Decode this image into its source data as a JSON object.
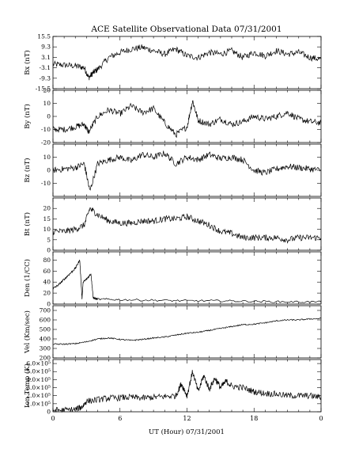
{
  "chart_data": {
    "type": "line",
    "title": "ACE Satellite Observational Data   07/31/2001",
    "xlabel": "UT (Hour)   07/31/2001",
    "x_tick_labels": [
      "0",
      "6",
      "12",
      "18",
      "0"
    ],
    "xlim": [
      0,
      24
    ],
    "grid": false,
    "panels": [
      {
        "ylabel": "Bx (nT)",
        "ylim": [
          -15.5,
          15.5
        ],
        "y_tick_labels": [
          "15.5",
          "9.3",
          "3.1",
          "-3.1",
          "-9.3",
          "-15.5"
        ],
        "series": [
          {
            "x": [
              0,
              1,
              2,
              2.8,
              3.2,
              3.6,
              4,
              5,
              6,
              7,
              8,
              9,
              10,
              11,
              12,
              13,
              14,
              15,
              16,
              17,
              18,
              19,
              20,
              21,
              22,
              23,
              24
            ],
            "values": [
              -1,
              -1.5,
              -2,
              -3,
              -9,
              -6,
              -4,
              3,
              6,
              8,
              9,
              7,
              5,
              8,
              4,
              3,
              6,
              5,
              7,
              3,
              6,
              4,
              7,
              5,
              6,
              3,
              2
            ]
          }
        ]
      },
      {
        "ylabel": "By (nT)",
        "ylim": [
          -20,
          20
        ],
        "y_tick_labels": [
          "20",
          "10",
          "0",
          "-10",
          "-20"
        ],
        "series": [
          {
            "x": [
              0,
              1,
              2,
              2.8,
              3.2,
              4,
              5,
              6,
              7,
              8,
              9,
              10,
              11,
              12,
              12.5,
              13,
              14,
              15,
              16,
              17,
              18,
              19,
              20,
              21,
              22,
              23,
              24
            ],
            "values": [
              -10,
              -10,
              -8,
              -6,
              -12,
              0,
              5,
              2,
              8,
              3,
              6,
              -5,
              -14,
              -8,
              12,
              -3,
              -6,
              -2,
              -6,
              -4,
              0,
              -2,
              0,
              3,
              -2,
              -4,
              -5
            ]
          }
        ]
      },
      {
        "ylabel": "Bz (nT)",
        "ylim": [
          -20,
          20
        ],
        "y_tick_labels": [
          "10",
          "0",
          "-10"
        ],
        "series": [
          {
            "x": [
              0,
              1,
              2,
              2.8,
              3.3,
              4,
              5,
              6,
              7,
              8,
              9,
              10,
              11,
              12,
              13,
              14,
              15,
              16,
              17,
              18,
              19,
              20,
              21,
              22,
              23,
              24
            ],
            "values": [
              0,
              1,
              2,
              5,
              -16,
              5,
              8,
              10,
              7,
              12,
              10,
              13,
              5,
              10,
              8,
              12,
              9,
              10,
              8,
              0,
              -2,
              1,
              3,
              2,
              1,
              0
            ]
          }
        ]
      },
      {
        "ylabel": "Bt (nT)",
        "ylim": [
          0,
          25
        ],
        "y_tick_labels": [
          "20",
          "15",
          "10",
          "5",
          "0"
        ],
        "series": [
          {
            "x": [
              0,
              1,
              2,
              2.8,
              3.3,
              4,
              5,
              6,
              7,
              8,
              9,
              10,
              11,
              12,
              13,
              14,
              15,
              16,
              17,
              18,
              19,
              20,
              21,
              22,
              23,
              24
            ],
            "values": [
              9,
              9,
              10,
              12,
              20,
              17,
              14,
              13,
              13,
              14,
              14,
              15,
              15,
              16,
              14,
              12,
              9,
              8,
              6,
              6,
              6,
              6,
              5,
              6,
              6,
              6
            ]
          }
        ]
      },
      {
        "ylabel": "Den (1/CC)",
        "ylim": [
          0,
          95
        ],
        "y_tick_labels": [
          "80",
          "60",
          "40",
          "20",
          "0"
        ],
        "series": [
          {
            "x": [
              0,
              0.5,
              1,
              1.5,
              2,
              2.4,
              2.6,
              2.7,
              3,
              3.4,
              3.6,
              3.8,
              4,
              6,
              9,
              12,
              15,
              18,
              21,
              24
            ],
            "values": [
              28,
              35,
              45,
              55,
              65,
              80,
              10,
              40,
              45,
              55,
              12,
              10,
              9,
              8,
              7,
              6,
              6,
              5,
              4,
              4
            ]
          }
        ]
      },
      {
        "ylabel": "Vel (Km/sec)",
        "ylim": [
          200,
          750
        ],
        "y_tick_labels": [
          "700",
          "600",
          "500",
          "400",
          "300",
          "200"
        ],
        "series": [
          {
            "x": [
              0,
              1,
              2,
              3,
              4,
              5,
              6,
              7,
              8,
              9,
              10,
              11,
              12,
              13,
              14,
              15,
              16,
              17,
              18,
              19,
              20,
              21,
              22,
              23,
              24
            ],
            "values": [
              345,
              345,
              350,
              370,
              400,
              410,
              395,
              385,
              395,
              410,
              420,
              440,
              460,
              470,
              490,
              510,
              530,
              550,
              555,
              570,
              590,
              600,
              600,
              610,
              615
            ]
          }
        ]
      },
      {
        "ylabel": "Ion Temp (K)",
        "ylim": [
          0,
          650000
        ],
        "y_tick_labels": [
          "6.0×10⁵",
          "5.0×10⁵",
          "4.0×10⁵",
          "3.0×10⁵",
          "2.0×10⁵",
          "1.0×10⁵",
          "0"
        ],
        "series": [
          {
            "x": [
              0,
              1,
              2,
              2.6,
              3,
              4,
              5,
              6,
              7,
              8,
              9,
              10,
              11,
              11.5,
              12,
              12.5,
              13,
              13.5,
              14,
              14.5,
              15,
              15.5,
              16,
              17,
              18,
              19,
              20,
              21,
              22,
              23,
              24
            ],
            "values": [
              20000,
              20000,
              30000,
              60000,
              130000,
              150000,
              170000,
              175000,
              180000,
              170000,
              180000,
              190000,
              200000,
              350000,
              200000,
              500000,
              250000,
              450000,
              280000,
              420000,
              300000,
              380000,
              320000,
              300000,
              250000,
              230000,
              220000,
              200000,
              200000,
              200000,
              180000
            ]
          }
        ]
      }
    ]
  }
}
